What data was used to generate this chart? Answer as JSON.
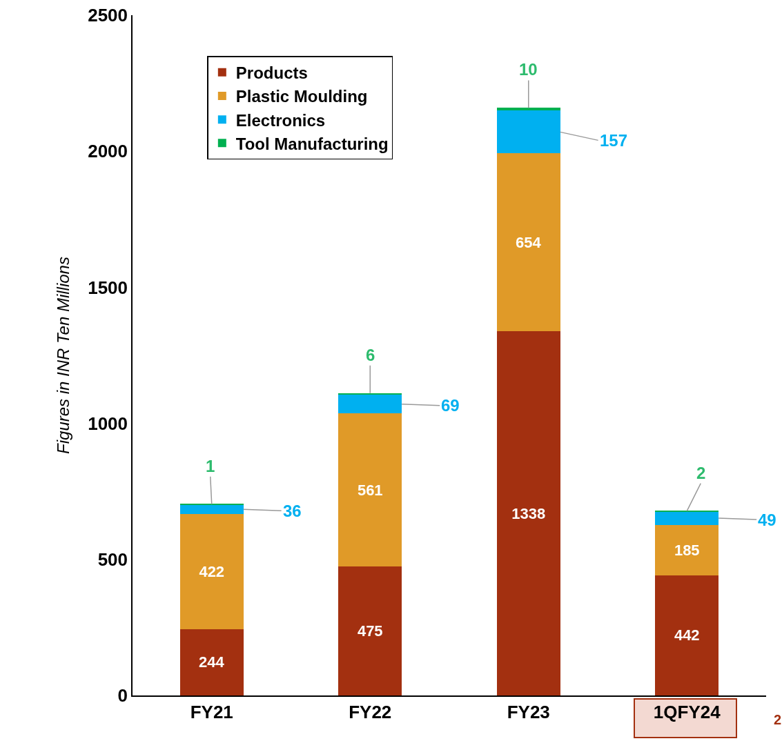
{
  "chart_data": {
    "type": "bar",
    "stacked": true,
    "ylabel": "Figures in INR Ten Millions",
    "categories": [
      "FY21",
      "FY22",
      "FY23",
      "1QFY24"
    ],
    "series": [
      {
        "name": "Products",
        "color": "#a33010",
        "values": [
          244,
          475,
          1338,
          442
        ]
      },
      {
        "name": "Plastic Moulding",
        "color": "#e09a28",
        "values": [
          422,
          561,
          654,
          185
        ]
      },
      {
        "name": "Electronics",
        "color": "#00b0f0",
        "values": [
          36,
          69,
          157,
          49
        ]
      },
      {
        "name": "Tool Manufacturing",
        "color": "#00b050",
        "values": [
          1,
          6,
          10,
          2
        ]
      }
    ],
    "ylim": [
      0,
      2500
    ],
    "yticks": [
      0,
      500,
      1000,
      1500,
      2000,
      2500
    ],
    "grid": false,
    "legend": "top left",
    "data_labels": true,
    "annotations": [
      "2"
    ]
  }
}
